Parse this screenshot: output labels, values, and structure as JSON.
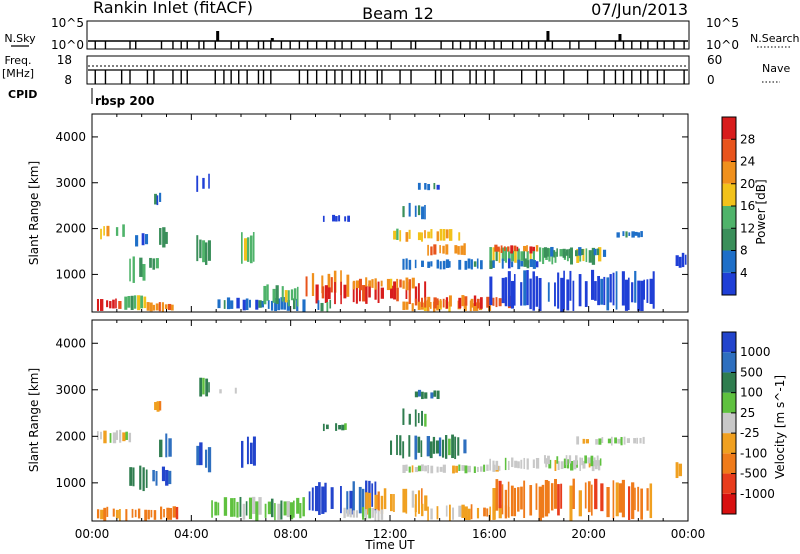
{
  "header": {
    "site": "Rankin Inlet (fitACF)",
    "beam": "Beam 12",
    "date": "07/Jun/2013"
  },
  "status_panels": {
    "nsky_label": "N.Sky",
    "nsearch_label": "N.Search",
    "left_scale_top": "10^5",
    "left_scale_bottom": "10^0",
    "right_scale_top": "10^5",
    "right_scale_bottom": "10^0",
    "freq_label_line1": "Freq.",
    "freq_label_line2": "[MHz]",
    "freq_top": "18",
    "freq_bottom": "8",
    "nave_label": "Nave",
    "nave_top": "60",
    "nave_bottom": "0",
    "cpid_label": "CPID",
    "cpid_value": "rbsp 200"
  },
  "colors": {
    "power": [
      "#1f3fd6",
      "#1e6fc8",
      "#3a8f5a",
      "#4fb36a",
      "#f2c21b",
      "#f0901c",
      "#e8541c",
      "#d81c1c"
    ],
    "velocity": [
      "#2244cc",
      "#2e6fbf",
      "#2f7d4f",
      "#5fc13f",
      "#c8c8c8",
      "#f0a020",
      "#ef7b1a",
      "#e83c1c",
      "#d81010"
    ]
  },
  "chart_data": [
    {
      "type": "heatmap",
      "name": "power",
      "ylabel": "Slant Range [km]",
      "xlabel": "",
      "ylim": [
        180,
        4500
      ],
      "yticks": [
        "1000",
        "2000",
        "3000",
        "4000"
      ],
      "colorbar_label": "Power [dB]",
      "colorbar_ticks": [
        "4",
        "8",
        "12",
        "16",
        "20",
        "24",
        "28"
      ],
      "blobs": [
        {
          "t0": 0.2,
          "t1": 1.3,
          "r0": 200,
          "r1": 500,
          "level": 7
        },
        {
          "t0": 1.3,
          "t1": 2.2,
          "r0": 200,
          "r1": 550,
          "level": 3
        },
        {
          "t0": 2.2,
          "t1": 3.3,
          "r0": 180,
          "r1": 400,
          "level": 5
        },
        {
          "t0": 0.2,
          "t1": 1.6,
          "r0": 1750,
          "r1": 2100,
          "level": 4
        },
        {
          "t0": 1.6,
          "t1": 2.4,
          "r0": 1600,
          "r1": 1900,
          "level": 1
        },
        {
          "t0": 1.5,
          "t1": 2.3,
          "r0": 800,
          "r1": 1400,
          "level": 3
        },
        {
          "t0": 2.3,
          "t1": 2.7,
          "r0": 1100,
          "r1": 1400,
          "level": 2
        },
        {
          "t0": 2.7,
          "t1": 3.2,
          "r0": 1500,
          "r1": 2100,
          "level": 2
        },
        {
          "t0": 2.5,
          "t1": 2.8,
          "r0": 2500,
          "r1": 2800,
          "level": 1
        },
        {
          "t0": 4.2,
          "t1": 4.9,
          "r0": 1200,
          "r1": 1900,
          "level": 2
        },
        {
          "t0": 4.2,
          "t1": 4.8,
          "r0": 2800,
          "r1": 3200,
          "level": 0
        },
        {
          "t0": 6.0,
          "t1": 6.6,
          "r0": 1200,
          "r1": 2000,
          "level": 3
        },
        {
          "t0": 4.8,
          "t1": 8.6,
          "r0": 180,
          "r1": 520,
          "level": 1
        },
        {
          "t0": 6.9,
          "t1": 8.5,
          "r0": 300,
          "r1": 800,
          "level": 3
        },
        {
          "t0": 8.6,
          "t1": 10.5,
          "r0": 500,
          "r1": 1100,
          "level": 5
        },
        {
          "t0": 9.0,
          "t1": 13.5,
          "r0": 350,
          "r1": 850,
          "level": 7
        },
        {
          "t0": 10.5,
          "t1": 13.0,
          "r0": 650,
          "r1": 950,
          "level": 5
        },
        {
          "t0": 12.5,
          "t1": 16.2,
          "r0": 180,
          "r1": 450,
          "level": 5
        },
        {
          "t0": 13.0,
          "t1": 17.0,
          "r0": 250,
          "r1": 550,
          "level": 6
        },
        {
          "t0": 8.6,
          "t1": 9.8,
          "r0": 180,
          "r1": 450,
          "level": 2
        },
        {
          "t0": 12.0,
          "t1": 15.0,
          "r0": 1700,
          "r1": 2000,
          "level": 4
        },
        {
          "t0": 13.5,
          "t1": 15.2,
          "r0": 1400,
          "r1": 1700,
          "level": 5
        },
        {
          "t0": 16.0,
          "t1": 20.5,
          "r0": 1200,
          "r1": 1600,
          "level": 3
        },
        {
          "t0": 16.2,
          "t1": 18.0,
          "r0": 1450,
          "r1": 1650,
          "level": 6
        },
        {
          "t0": 12.5,
          "t1": 18.0,
          "r0": 1100,
          "r1": 1350,
          "level": 1
        },
        {
          "t0": 16.0,
          "t1": 22.7,
          "r0": 180,
          "r1": 1100,
          "level": 0
        },
        {
          "t0": 18.2,
          "t1": 20.7,
          "r0": 1350,
          "r1": 1600,
          "level": 2
        },
        {
          "t0": 21.0,
          "t1": 22.2,
          "r0": 1800,
          "r1": 1950,
          "level": 1
        },
        {
          "t0": 9.3,
          "t1": 10.4,
          "r0": 2100,
          "r1": 2300,
          "level": 0
        },
        {
          "t0": 12.5,
          "t1": 13.5,
          "r0": 2200,
          "r1": 2600,
          "level": 2
        },
        {
          "t0": 13.0,
          "t1": 14.0,
          "r0": 2800,
          "r1": 3000,
          "level": 1
        },
        {
          "t0": 23.5,
          "t1": 24.0,
          "r0": 1100,
          "r1": 1500,
          "level": 0
        }
      ]
    },
    {
      "type": "heatmap",
      "name": "velocity",
      "ylabel": "Slant Range [km]",
      "xlabel": "Time UT",
      "ylim": [
        180,
        4500
      ],
      "yticks": [
        "1000",
        "2000",
        "3000",
        "4000"
      ],
      "xticks": [
        "00:00",
        "04:00",
        "08:00",
        "12:00",
        "16:00",
        "20:00",
        "00:00"
      ],
      "colorbar_label": "Velocity [m s^-1]",
      "colorbar_ticks": [
        "1000",
        "500",
        "100",
        "25",
        "-25",
        "-100",
        "-500",
        "-1000"
      ],
      "blobs": [
        {
          "t0": 0.2,
          "t1": 1.6,
          "r0": 1850,
          "r1": 2150,
          "level": 4
        },
        {
          "t0": 1.5,
          "t1": 2.3,
          "r0": 800,
          "r1": 1400,
          "level": 2
        },
        {
          "t0": 2.3,
          "t1": 3.2,
          "r0": 900,
          "r1": 1400,
          "level": 1
        },
        {
          "t0": 2.7,
          "t1": 3.2,
          "r0": 1500,
          "r1": 2100,
          "level": 1
        },
        {
          "t0": 2.5,
          "t1": 2.8,
          "r0": 2500,
          "r1": 2800,
          "level": 5
        },
        {
          "t0": 0.2,
          "t1": 3.5,
          "r0": 180,
          "r1": 500,
          "level": 6
        },
        {
          "t0": 4.2,
          "t1": 4.9,
          "r0": 1200,
          "r1": 1900,
          "level": 0
        },
        {
          "t0": 4.2,
          "t1": 4.8,
          "r0": 2800,
          "r1": 3300,
          "level": 2
        },
        {
          "t0": 6.0,
          "t1": 6.6,
          "r0": 1200,
          "r1": 2000,
          "level": 0
        },
        {
          "t0": 4.8,
          "t1": 8.6,
          "r0": 180,
          "r1": 700,
          "level": 3
        },
        {
          "t0": 8.6,
          "t1": 11.5,
          "r0": 250,
          "r1": 1050,
          "level": 0
        },
        {
          "t0": 11.0,
          "t1": 13.5,
          "r0": 300,
          "r1": 900,
          "level": 5
        },
        {
          "t0": 10.0,
          "t1": 12.0,
          "r0": 180,
          "r1": 500,
          "level": 4
        },
        {
          "t0": 13.0,
          "t1": 17.0,
          "r0": 180,
          "r1": 550,
          "level": 5
        },
        {
          "t0": 12.0,
          "t1": 15.2,
          "r0": 1500,
          "r1": 2050,
          "level": 2
        },
        {
          "t0": 12.5,
          "t1": 16.5,
          "r0": 1200,
          "r1": 1400,
          "level": 4
        },
        {
          "t0": 16.0,
          "t1": 20.5,
          "r0": 1250,
          "r1": 1550,
          "level": 4
        },
        {
          "t0": 16.0,
          "t1": 22.7,
          "r0": 180,
          "r1": 1100,
          "level": 6
        },
        {
          "t0": 18.2,
          "t1": 20.7,
          "r0": 1350,
          "r1": 1600,
          "level": 4
        },
        {
          "t0": 19.5,
          "t1": 22.3,
          "r0": 1800,
          "r1": 2000,
          "level": 4
        },
        {
          "t0": 9.3,
          "t1": 10.4,
          "r0": 2100,
          "r1": 2300,
          "level": 2
        },
        {
          "t0": 12.5,
          "t1": 13.5,
          "r0": 2200,
          "r1": 2600,
          "level": 2
        },
        {
          "t0": 13.0,
          "t1": 14.0,
          "r0": 2800,
          "r1": 3000,
          "level": 2
        },
        {
          "t0": 5.0,
          "t1": 6.0,
          "r0": 2900,
          "r1": 3050,
          "level": 4
        },
        {
          "t0": 23.5,
          "t1": 24.0,
          "r0": 1100,
          "r1": 1500,
          "level": 5
        }
      ]
    }
  ]
}
